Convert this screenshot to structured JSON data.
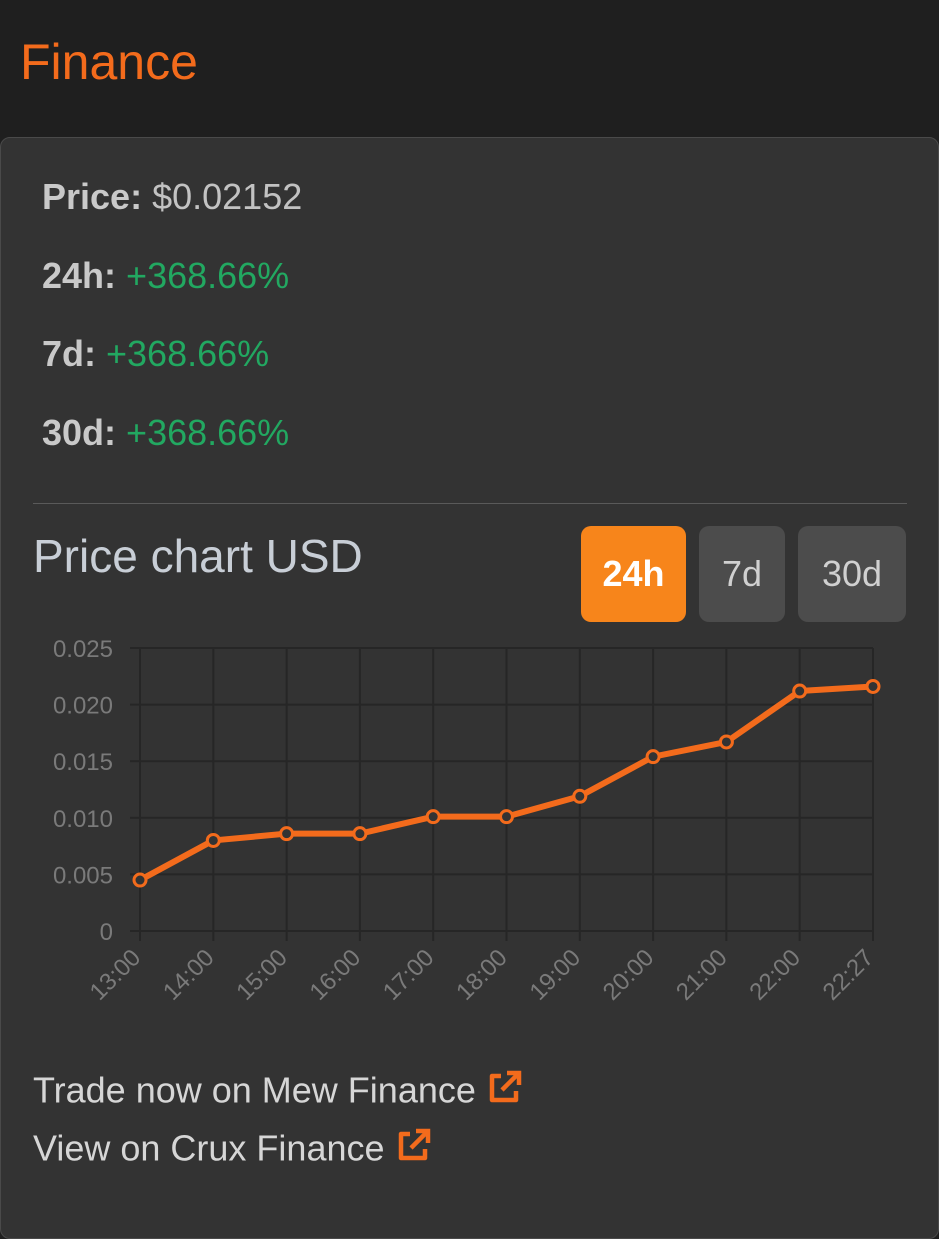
{
  "header": {
    "title": "Finance"
  },
  "stats": {
    "price_label": "Price:",
    "price_value": "$0.02152",
    "h24_label": "24h:",
    "h24_value": "+368.66%",
    "d7_label": "7d:",
    "d7_value": "+368.66%",
    "d30_label": "30d:",
    "d30_value": "+368.66%"
  },
  "chart_section": {
    "title": "Price chart USD",
    "ranges": [
      {
        "label": "24h",
        "active": true
      },
      {
        "label": "7d",
        "active": false
      },
      {
        "label": "30d",
        "active": false
      }
    ]
  },
  "chart_data": {
    "type": "line",
    "x": [
      "13:00",
      "14:00",
      "15:00",
      "16:00",
      "17:00",
      "18:00",
      "19:00",
      "20:00",
      "21:00",
      "22:00",
      "22:27"
    ],
    "series": [
      {
        "values": [
          0.0045,
          0.008,
          0.0086,
          0.0086,
          0.0101,
          0.0101,
          0.0119,
          0.0154,
          0.0167,
          0.0212,
          0.0216
        ]
      }
    ],
    "ylim": [
      0,
      0.025
    ],
    "yticks": [
      "0.025",
      "0.020",
      "0.015",
      "0.010",
      "0.005",
      "0"
    ],
    "grid": true,
    "line_color": "#f36b1c"
  },
  "links": {
    "trade": "Trade now on Mew Finance",
    "view": "View on Crux Finance"
  },
  "colors": {
    "accent": "#f36b1c",
    "positive": "#22a861",
    "active_button": "#f7851b"
  }
}
